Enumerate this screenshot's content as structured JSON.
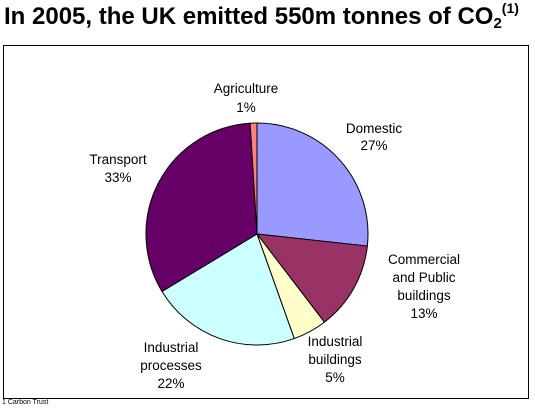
{
  "title": {
    "main": "In 2005, the UK emitted 550m tonnes of CO",
    "sub": "2",
    "sup": "(1)"
  },
  "chart_data": {
    "type": "pie",
    "title": "In 2005, the UK emitted 550m tonnes of CO2(1)",
    "start_angle_deg": 0,
    "direction": "clockwise",
    "slices": [
      {
        "name": "Domestic",
        "label_lines": [
          "Domestic",
          "27%"
        ],
        "value": 27,
        "color": "#9999ff"
      },
      {
        "name": "Commercial and Public buildings",
        "label_lines": [
          "Commercial",
          "and Public",
          "buildings",
          "13%"
        ],
        "value": 13,
        "color": "#993366"
      },
      {
        "name": "Industrial buildings",
        "label_lines": [
          "Industrial",
          "buildings",
          "5%"
        ],
        "value": 5,
        "color": "#ffffcc"
      },
      {
        "name": "Industrial processes",
        "label_lines": [
          "Industrial",
          "processes",
          "22%"
        ],
        "value": 22,
        "color": "#ccffff"
      },
      {
        "name": "Transport",
        "label_lines": [
          "Transport",
          "33%"
        ],
        "value": 33,
        "color": "#660066"
      },
      {
        "name": "Agriculture",
        "label_lines": [
          "Agriculture",
          "1%"
        ],
        "value": 1,
        "color": "#ff8080"
      }
    ],
    "legend": "none"
  },
  "footnote": "1 Carbon Trust"
}
